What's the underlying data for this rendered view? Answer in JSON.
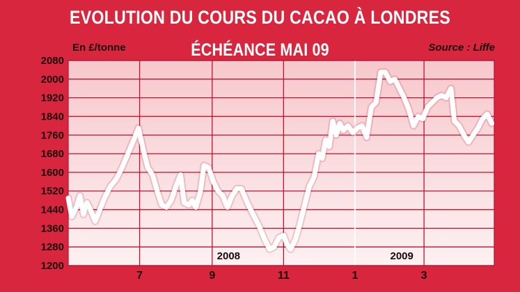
{
  "chart_data": {
    "type": "line",
    "title": "EVOLUTION DU COURS DU CACAO À LONDRES",
    "subtitle": "ÉCHÉANCE MAI 09",
    "unit_label": "En £/tonne",
    "source": "Source : Liffe",
    "ylim": [
      1200,
      2080
    ],
    "yticks": [
      2080,
      2000,
      1920,
      1840,
      1760,
      1680,
      1600,
      1520,
      1440,
      1360,
      1280,
      1200
    ],
    "xlim": [
      "2008-05-01",
      "2009-04-30"
    ],
    "xticks": [
      {
        "label": "7",
        "date": "2008-07-01"
      },
      {
        "label": "9",
        "date": "2008-09-01"
      },
      {
        "label": "11",
        "date": "2008-11-01"
      },
      {
        "label": "1",
        "date": "2009-01-01"
      },
      {
        "label": "3",
        "date": "2009-03-01"
      }
    ],
    "year_labels": [
      {
        "label": "2008",
        "date": "2008-09-15"
      },
      {
        "label": "2009",
        "date": "2009-02-10"
      }
    ],
    "year_divider": "2009-01-01",
    "grid": true,
    "colors": {
      "background": "#d9263f",
      "plot_top": "#f7c8cc",
      "plot_bottom": "#fdf1f2",
      "line": "#ffffff",
      "grid": "#c0102e"
    },
    "series": [
      {
        "points": [
          [
            "2008-05-01",
            1490
          ],
          [
            "2008-05-04",
            1410
          ],
          [
            "2008-05-08",
            1450
          ],
          [
            "2008-05-11",
            1500
          ],
          [
            "2008-05-14",
            1420
          ],
          [
            "2008-05-17",
            1470
          ],
          [
            "2008-05-20",
            1440
          ],
          [
            "2008-05-24",
            1390
          ],
          [
            "2008-05-28",
            1440
          ],
          [
            "2008-06-01",
            1490
          ],
          [
            "2008-06-06",
            1540
          ],
          [
            "2008-06-11",
            1570
          ],
          [
            "2008-06-16",
            1620
          ],
          [
            "2008-06-21",
            1680
          ],
          [
            "2008-06-26",
            1740
          ],
          [
            "2008-06-30",
            1790
          ],
          [
            "2008-07-04",
            1700
          ],
          [
            "2008-07-08",
            1620
          ],
          [
            "2008-07-12",
            1590
          ],
          [
            "2008-07-16",
            1520
          ],
          [
            "2008-07-20",
            1460
          ],
          [
            "2008-07-24",
            1450
          ],
          [
            "2008-07-28",
            1480
          ],
          [
            "2008-08-01",
            1540
          ],
          [
            "2008-08-05",
            1590
          ],
          [
            "2008-08-08",
            1470
          ],
          [
            "2008-08-12",
            1460
          ],
          [
            "2008-08-15",
            1480
          ],
          [
            "2008-08-18",
            1450
          ],
          [
            "2008-08-22",
            1520
          ],
          [
            "2008-08-25",
            1630
          ],
          [
            "2008-08-29",
            1620
          ],
          [
            "2008-09-02",
            1560
          ],
          [
            "2008-09-06",
            1520
          ],
          [
            "2008-09-10",
            1500
          ],
          [
            "2008-09-14",
            1450
          ],
          [
            "2008-09-18",
            1500
          ],
          [
            "2008-09-22",
            1530
          ],
          [
            "2008-09-26",
            1530
          ],
          [
            "2008-10-01",
            1470
          ],
          [
            "2008-10-06",
            1420
          ],
          [
            "2008-10-11",
            1370
          ],
          [
            "2008-10-16",
            1310
          ],
          [
            "2008-10-20",
            1270
          ],
          [
            "2008-10-24",
            1280
          ],
          [
            "2008-10-28",
            1320
          ],
          [
            "2008-11-01",
            1330
          ],
          [
            "2008-11-04",
            1290
          ],
          [
            "2008-11-07",
            1270
          ],
          [
            "2008-11-11",
            1310
          ],
          [
            "2008-11-15",
            1380
          ],
          [
            "2008-11-19",
            1460
          ],
          [
            "2008-11-23",
            1540
          ],
          [
            "2008-11-27",
            1580
          ],
          [
            "2008-12-01",
            1680
          ],
          [
            "2008-12-04",
            1660
          ],
          [
            "2008-12-07",
            1740
          ],
          [
            "2008-12-10",
            1710
          ],
          [
            "2008-12-13",
            1820
          ],
          [
            "2008-12-16",
            1760
          ],
          [
            "2008-12-19",
            1810
          ],
          [
            "2008-12-22",
            1780
          ],
          [
            "2008-12-26",
            1800
          ],
          [
            "2008-12-30",
            1770
          ],
          [
            "2009-01-03",
            1790
          ],
          [
            "2009-01-07",
            1800
          ],
          [
            "2009-01-11",
            1750
          ],
          [
            "2009-01-15",
            1880
          ],
          [
            "2009-01-19",
            1900
          ],
          [
            "2009-01-23",
            2030
          ],
          [
            "2009-01-27",
            2030
          ],
          [
            "2009-01-31",
            1990
          ],
          [
            "2009-02-04",
            2000
          ],
          [
            "2009-02-08",
            1960
          ],
          [
            "2009-02-12",
            1920
          ],
          [
            "2009-02-16",
            1870
          ],
          [
            "2009-02-20",
            1800
          ],
          [
            "2009-02-24",
            1840
          ],
          [
            "2009-02-28",
            1830
          ],
          [
            "2009-03-04",
            1880
          ],
          [
            "2009-03-08",
            1900
          ],
          [
            "2009-03-12",
            1920
          ],
          [
            "2009-03-16",
            1930
          ],
          [
            "2009-03-20",
            1920
          ],
          [
            "2009-03-24",
            1960
          ],
          [
            "2009-03-27",
            1820
          ],
          [
            "2009-03-31",
            1800
          ],
          [
            "2009-04-04",
            1760
          ],
          [
            "2009-04-08",
            1730
          ],
          [
            "2009-04-12",
            1760
          ],
          [
            "2009-04-16",
            1790
          ],
          [
            "2009-04-20",
            1830
          ],
          [
            "2009-04-24",
            1850
          ],
          [
            "2009-04-28",
            1810
          ]
        ]
      }
    ]
  }
}
